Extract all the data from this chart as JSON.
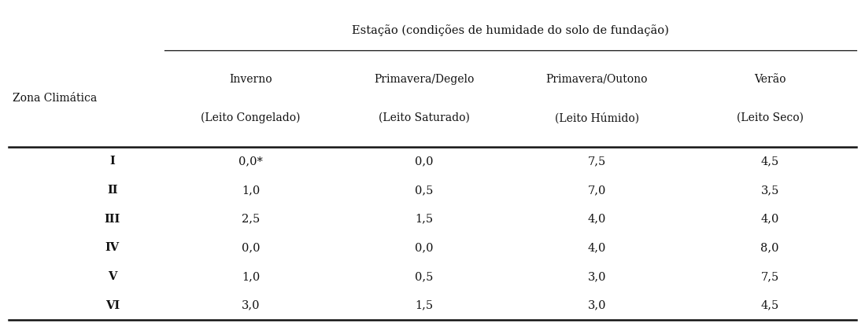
{
  "title_row": "Estação (condições de humidade do solo de fundação)",
  "col_header_row1": [
    "Inverno",
    "Primavera/Degelo",
    "Primavera/Outono",
    "Verão"
  ],
  "col_header_row2": [
    "(Leito Congelado)",
    "(Leito Saturado)",
    "(Leito Húmido)",
    "(Leito Seco)"
  ],
  "zona_climatica_label": "Zona Climática",
  "rows": [
    [
      "I",
      "0,0*",
      "0,0",
      "7,5",
      "4,5"
    ],
    [
      "II",
      "1,0",
      "0,5",
      "7,0",
      "3,5"
    ],
    [
      "III",
      "2,5",
      "1,5",
      "4,0",
      "4,0"
    ],
    [
      "IV",
      "0,0",
      "0,0",
      "4,0",
      "8,0"
    ],
    [
      "V",
      "1,0",
      "0,5",
      "3,0",
      "7,5"
    ],
    [
      "VI",
      "3,0",
      "1,5",
      "3,0",
      "4,5"
    ]
  ],
  "bg_color": "#ffffff",
  "text_color": "#111111",
  "line_color": "#111111",
  "font_size_title": 10.5,
  "font_size_header": 10,
  "font_size_data": 10.5,
  "fig_width": 10.99,
  "fig_height": 4.11,
  "dpi": 100
}
